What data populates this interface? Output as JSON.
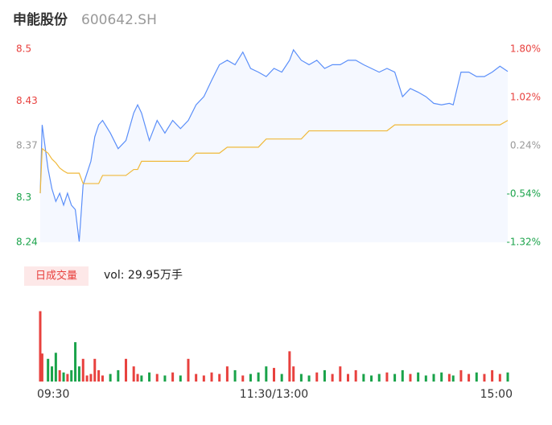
{
  "chart_data": {
    "type": "intraday",
    "title": "申能股份",
    "subtitle": "600642.SH",
    "volume_title": "日成交量",
    "volume_label": "vol: 29.95万手",
    "x": [
      0,
      1,
      4,
      6,
      8,
      10,
      12,
      14,
      16,
      18,
      20,
      22,
      24,
      26,
      28,
      30,
      32,
      36,
      40,
      44,
      48,
      50,
      52,
      56,
      60,
      64,
      68,
      72,
      76,
      80,
      84,
      88,
      92,
      96,
      100,
      104,
      108,
      112,
      116,
      120,
      124,
      128,
      130,
      134,
      138,
      142,
      146,
      150,
      154,
      158,
      162,
      166,
      170,
      174,
      178,
      182,
      186,
      190,
      194,
      198,
      202,
      206,
      210,
      212,
      216,
      220,
      224,
      228,
      232,
      236,
      240
    ],
    "xlim": [
      0,
      240
    ],
    "xticks": [
      {
        "value": 0,
        "label": "09:30"
      },
      {
        "value": 120,
        "label": "11:30/13:00"
      },
      {
        "value": 240,
        "label": "15:00"
      }
    ],
    "ylim": [
      8.24,
      8.5
    ],
    "yticks": [
      8.24,
      8.3,
      8.37,
      8.43,
      8.5
    ],
    "y2lim": [
      -1.32,
      1.8
    ],
    "y2ticks": [
      {
        "value": -1.32,
        "label": "-1.32%"
      },
      {
        "value": -0.54,
        "label": "-0.54%"
      },
      {
        "value": 0.24,
        "label": "0.24%"
      },
      {
        "value": 1.02,
        "label": "1.02%"
      },
      {
        "value": 1.8,
        "label": "1.80%"
      }
    ],
    "up_color": "#e8413e",
    "down_color": "#1aa34a",
    "flat_color": "#999999",
    "series": [
      {
        "name": "price",
        "color": "#5b8ff9",
        "values": [
          8.306,
          8.398,
          8.339,
          8.312,
          8.295,
          8.306,
          8.29,
          8.306,
          8.29,
          8.284,
          8.241,
          8.317,
          8.333,
          8.349,
          8.382,
          8.398,
          8.404,
          8.387,
          8.366,
          8.377,
          8.414,
          8.425,
          8.414,
          8.377,
          8.404,
          8.387,
          8.404,
          8.393,
          8.404,
          8.425,
          8.436,
          8.458,
          8.479,
          8.485,
          8.479,
          8.496,
          8.474,
          8.469,
          8.463,
          8.474,
          8.469,
          8.485,
          8.499,
          8.485,
          8.479,
          8.485,
          8.474,
          8.479,
          8.479,
          8.485,
          8.485,
          8.479,
          8.474,
          8.469,
          8.474,
          8.469,
          8.436,
          8.447,
          8.442,
          8.436,
          8.427,
          8.425,
          8.427,
          8.425,
          8.469,
          8.469,
          8.463,
          8.463,
          8.469,
          8.477,
          8.47
        ]
      },
      {
        "name": "average",
        "color": "#f0b93a",
        "values": [
          8.306,
          8.366,
          8.36,
          8.352,
          8.347,
          8.34,
          8.336,
          8.333,
          8.333,
          8.333,
          8.333,
          8.319,
          8.319,
          8.319,
          8.319,
          8.319,
          8.33,
          8.33,
          8.33,
          8.33,
          8.338,
          8.338,
          8.349,
          8.349,
          8.349,
          8.349,
          8.349,
          8.349,
          8.349,
          8.36,
          8.36,
          8.36,
          8.36,
          8.368,
          8.368,
          8.368,
          8.368,
          8.368,
          8.379,
          8.379,
          8.379,
          8.379,
          8.379,
          8.379,
          8.39,
          8.39,
          8.39,
          8.39,
          8.39,
          8.39,
          8.39,
          8.39,
          8.39,
          8.39,
          8.39,
          8.398,
          8.398,
          8.398,
          8.398,
          8.398,
          8.398,
          8.398,
          8.398,
          8.398,
          8.398,
          8.398,
          8.398,
          8.398,
          8.398,
          8.398,
          8.404
        ]
      }
    ],
    "volume": {
      "ylim": [
        0,
        100
      ],
      "values": [
        93,
        37,
        30,
        20,
        38,
        15,
        12,
        10,
        15,
        52,
        20,
        30,
        8,
        10,
        30,
        15,
        8,
        10,
        15,
        30,
        20,
        10,
        8,
        12,
        10,
        8,
        12,
        8,
        30,
        10,
        8,
        12,
        10,
        20,
        15,
        8,
        10,
        12,
        20,
        18,
        10,
        40,
        20,
        10,
        8,
        12,
        15,
        10,
        20,
        10,
        15,
        10,
        8,
        10,
        12,
        10,
        15,
        10,
        12,
        8,
        10,
        12,
        10,
        8,
        15,
        10,
        12,
        10,
        15,
        10,
        12
      ]
    }
  }
}
